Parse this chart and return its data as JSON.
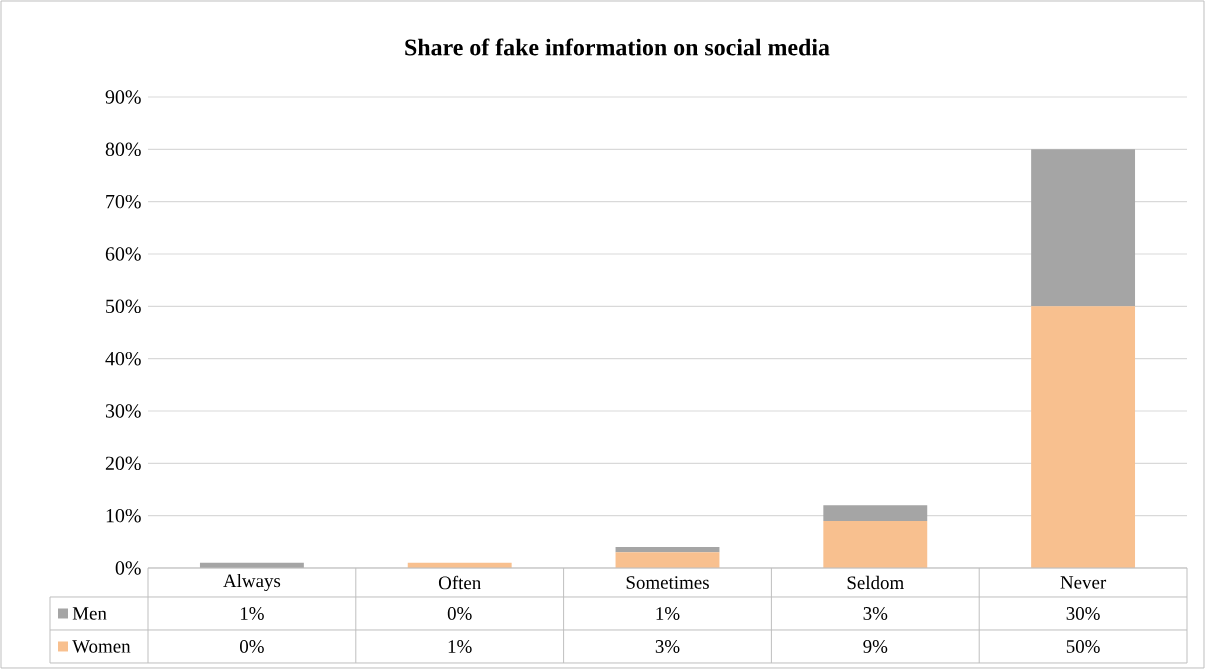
{
  "chart_data": {
    "type": "bar",
    "stacked": true,
    "title": "Share of fake information on social media",
    "categories": [
      "Always",
      "Often",
      "Sometimes",
      "Seldom",
      "Never"
    ],
    "series": [
      {
        "name": "Women",
        "color": "#f8c08f",
        "values": [
          0,
          1,
          3,
          9,
          50
        ],
        "value_labels": [
          "0%",
          "1%",
          "3%",
          "9%",
          "50%"
        ]
      },
      {
        "name": "Men",
        "color": "#a5a5a5",
        "values": [
          1,
          0,
          1,
          3,
          30
        ],
        "value_labels": [
          "1%",
          "0%",
          "1%",
          "3%",
          "30%"
        ]
      }
    ],
    "ylim": [
      0,
      90
    ],
    "yticks": [
      {
        "value": 0,
        "label": "0%"
      },
      {
        "value": 10,
        "label": "10%"
      },
      {
        "value": 20,
        "label": "20%"
      },
      {
        "value": 30,
        "label": "30%"
      },
      {
        "value": 40,
        "label": "40%"
      },
      {
        "value": 50,
        "label": "50%"
      },
      {
        "value": 60,
        "label": "60%"
      },
      {
        "value": 70,
        "label": "70%"
      },
      {
        "value": 80,
        "label": "80%"
      },
      {
        "value": 90,
        "label": "90%"
      }
    ],
    "grid": "y",
    "legend": "bottom"
  }
}
